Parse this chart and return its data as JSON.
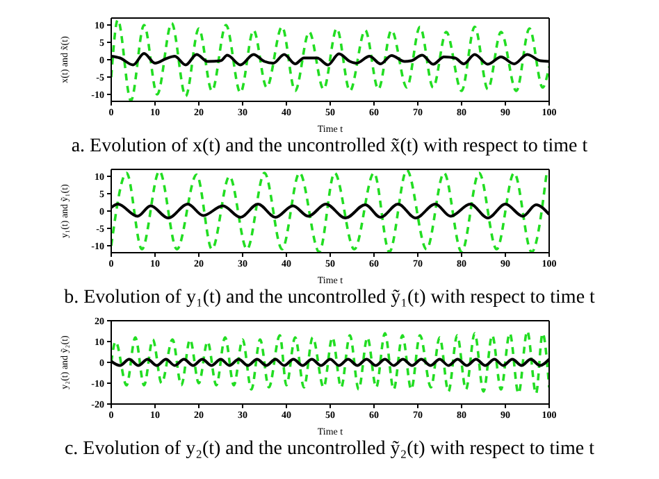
{
  "chart_data": [
    {
      "type": "line",
      "title": "a. Evolution of x(t) and the uncontrolled x̃(t) with respect to time t",
      "xlabel": "Time t",
      "ylabel": "x(t) and x̃(t)",
      "xlim": [
        0,
        100
      ],
      "xticks": [
        0,
        10,
        20,
        30,
        40,
        50,
        60,
        70,
        80,
        90,
        100
      ],
      "ylim": [
        -12,
        12
      ],
      "yticks": [
        -10,
        -5,
        0,
        5,
        10
      ],
      "series": [
        {
          "color": "#22dd22",
          "line_style": "dashed",
          "x": [
            0,
            1.5,
            4.5,
            7.5,
            10.5,
            13.8,
            17,
            20,
            23,
            26.2,
            29.5,
            32.5,
            35.5,
            39,
            42,
            45.2,
            48.5,
            51.5,
            54.5,
            58,
            61,
            64,
            67.5,
            70.5,
            73.5,
            76.5,
            80,
            83,
            86,
            89,
            92.5,
            95.5,
            98.5,
            100
          ],
          "values": [
            -5,
            11.5,
            -11.8,
            10,
            -10,
            10.5,
            -10.5,
            9,
            -9,
            10,
            -9.5,
            8.5,
            -8,
            9.5,
            -9,
            8,
            -8.5,
            9,
            -9,
            8.5,
            -8.5,
            8.5,
            -8,
            9.5,
            -8,
            8,
            -9,
            9.5,
            -8.5,
            8,
            -9,
            9,
            -8,
            -2
          ]
        },
        {
          "color": "#000000",
          "line_style": "solid",
          "x": [
            0,
            2,
            5,
            7.5,
            10,
            12.5,
            14.5,
            17,
            19.5,
            22,
            25,
            26.5,
            29.5,
            32.5,
            35,
            37,
            39.5,
            42,
            44,
            47,
            49.5,
            52,
            54.5,
            56,
            59,
            61.5,
            64,
            67,
            68.5,
            71,
            73.5,
            76,
            78.5,
            80.5,
            83,
            86,
            89,
            92,
            95,
            98,
            100
          ],
          "values": [
            1,
            0.5,
            -1.5,
            1.8,
            -1,
            0.3,
            1,
            -1.5,
            1.5,
            -0.5,
            -0.3,
            1.3,
            -1.5,
            1.5,
            -0.5,
            -1,
            1.5,
            -1.2,
            0.5,
            0.5,
            -1.5,
            1.7,
            -0.5,
            -1,
            1,
            -1.2,
            1.2,
            -0.5,
            -0.3,
            1.3,
            -1.3,
            0.8,
            0.5,
            -1.2,
            1.5,
            -1.3,
            0.8,
            -1.2,
            1.5,
            -0.3,
            -0.5
          ]
        }
      ]
    },
    {
      "type": "line",
      "title": "b. Evolution of y₁(t) and the uncontrolled ỹ₁(t) with respect to time t",
      "xlabel": "Time t",
      "ylabel": "y₁(t) and ỹ₁(t)",
      "xlim": [
        0,
        100
      ],
      "xticks": [
        0,
        10,
        20,
        30,
        40,
        50,
        60,
        70,
        80,
        90,
        100
      ],
      "ylim": [
        -12,
        12
      ],
      "yticks": [
        -10,
        -5,
        0,
        5,
        10
      ],
      "series": [
        {
          "color": "#22dd22",
          "line_style": "dashed",
          "x": [
            0,
            3.5,
            7,
            11,
            15,
            19.5,
            23,
            27,
            31,
            35,
            39,
            43,
            47.5,
            51,
            55.5,
            60,
            63.5,
            67.5,
            72,
            76,
            80,
            84,
            88,
            92,
            96,
            99.5
          ],
          "values": [
            -10,
            11,
            -11,
            11.5,
            -11,
            10.5,
            -11,
            10,
            -11,
            11,
            -11,
            11,
            -11.8,
            11,
            -11,
            11,
            -11.8,
            11.8,
            -11,
            11,
            -11.8,
            11,
            -11,
            11,
            -11.8,
            11.8
          ]
        },
        {
          "color": "#000000",
          "line_style": "solid",
          "x": [
            0,
            1.5,
            6,
            9,
            13,
            17.5,
            21,
            25.5,
            29.5,
            33.5,
            37.5,
            41.5,
            45,
            49,
            53.5,
            58,
            61.5,
            65.5,
            69.5,
            74,
            77.5,
            82,
            86,
            90,
            94,
            97,
            100
          ],
          "values": [
            1,
            2,
            -1.5,
            1.5,
            -2,
            2,
            -1.3,
            1.5,
            -1.8,
            2,
            -1.8,
            1.5,
            -1.5,
            2,
            -2,
            1.8,
            -1.8,
            2,
            -2,
            2,
            -1.5,
            2,
            -2,
            2,
            -1.5,
            1.8,
            -1
          ]
        }
      ]
    },
    {
      "type": "line",
      "title": "c. Evolution of y₂(t) and the uncontrolled ỹ₂(t) with respect to time t",
      "xlabel": "Time t",
      "ylabel": "y₂(t) and ỹ₂(t)",
      "xlim": [
        0,
        100
      ],
      "xticks": [
        0,
        10,
        20,
        30,
        40,
        50,
        60,
        70,
        80,
        90,
        100
      ],
      "ylim": [
        -20,
        20
      ],
      "yticks": [
        -20,
        -10,
        0,
        10,
        20
      ],
      "series": [
        {
          "color": "#22dd22",
          "line_style": "dashed",
          "x": [
            0,
            1,
            3.5,
            5.5,
            7.5,
            9.5,
            11.5,
            14,
            16,
            18,
            20,
            22,
            24,
            26,
            28,
            30,
            32,
            34,
            36,
            38.5,
            40,
            42,
            44,
            46,
            48.5,
            50.5,
            52.5,
            54.5,
            56.5,
            58.5,
            60.5,
            62.5,
            64.5,
            66.5,
            68.5,
            70.5,
            73,
            75,
            77,
            79,
            81,
            83,
            85,
            87,
            89,
            91,
            93,
            95,
            97,
            98.5,
            100
          ],
          "values": [
            0,
            10,
            -11,
            12,
            -11,
            11,
            -10,
            11,
            -11,
            11,
            -10,
            10,
            -11,
            12,
            -11,
            11,
            -13,
            11,
            -12,
            13,
            -11,
            12,
            -12,
            12,
            -12,
            12,
            -12,
            13,
            -13,
            12,
            -12,
            14,
            -13,
            13,
            -13,
            13,
            -12,
            12,
            -14,
            13,
            -13,
            14,
            -14,
            13,
            -13,
            14,
            -15,
            15,
            -15,
            14,
            -12
          ]
        },
        {
          "color": "#000000",
          "line_style": "solid",
          "x": [
            0,
            2,
            4.1,
            6.2,
            8.3,
            10.4,
            12.5,
            14.5,
            16.6,
            18.7,
            20.8,
            22.9,
            25,
            27,
            29.1,
            31.2,
            33.3,
            35.4,
            37.5,
            39.5,
            41.6,
            43.7,
            45.8,
            47.9,
            50,
            52,
            54.1,
            56.2,
            58.3,
            60.4,
            62.5,
            64.5,
            66.6,
            68.7,
            70.8,
            72.9,
            75,
            77,
            79.1,
            81.2,
            83.3,
            85.4,
            87.5,
            89.5,
            91.6,
            93.7,
            95.8,
            97.9,
            100
          ],
          "values": [
            0.5,
            -1.5,
            1.5,
            -1.5,
            1.5,
            -1.5,
            1.5,
            -1.5,
            1.5,
            -1.5,
            1.5,
            -1.5,
            1.5,
            -1.5,
            1.5,
            -1.5,
            1.5,
            -1.5,
            1.5,
            -1.5,
            1.5,
            -1.5,
            1.5,
            -1.5,
            1.5,
            -1.5,
            1.5,
            -1.5,
            1.5,
            -1.5,
            1.5,
            -1.5,
            1.5,
            -1.5,
            1.5,
            -1.5,
            1.5,
            -1.5,
            1.5,
            -1.5,
            1.5,
            -1.5,
            1.5,
            -1.5,
            1.5,
            -1.5,
            1.5,
            -1.5,
            1.5
          ]
        }
      ]
    }
  ]
}
